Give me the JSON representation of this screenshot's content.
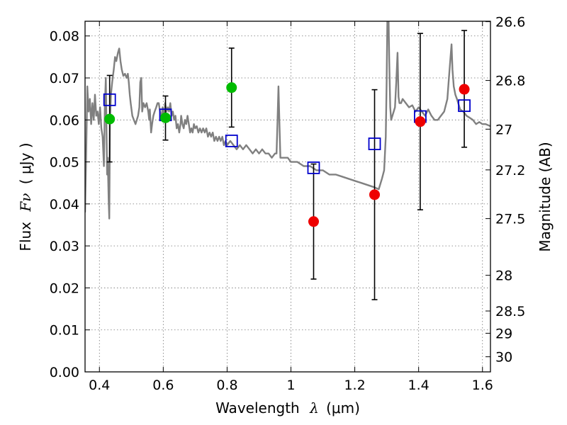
{
  "chart_data": {
    "type": "scatter",
    "xlabel": "Wavelength",
    "xlabel_symbol": "λ",
    "xlabel_unit": "(μm)",
    "ylabel": "Flux",
    "ylabel_symbol": "Fν",
    "ylabel_unit": "( μJy )",
    "right_ylabel": "Magnitude (AB)",
    "xlim": [
      0.355,
      1.625
    ],
    "ylim": [
      0.0,
      0.0835
    ],
    "grid": true,
    "x_ticks": [
      {
        "value": 0.4,
        "label": "0.4"
      },
      {
        "value": 0.6,
        "label": "0.6"
      },
      {
        "value": 0.8,
        "label": "0.8"
      },
      {
        "value": 1.0,
        "label": "1"
      },
      {
        "value": 1.2,
        "label": "1.2"
      },
      {
        "value": 1.4,
        "label": "1.4"
      },
      {
        "value": 1.6,
        "label": "1.6"
      }
    ],
    "y_ticks": [
      {
        "value": 0.0,
        "label": "0.00"
      },
      {
        "value": 0.01,
        "label": "0.01"
      },
      {
        "value": 0.02,
        "label": "0.02"
      },
      {
        "value": 0.03,
        "label": "0.03"
      },
      {
        "value": 0.04,
        "label": "0.04"
      },
      {
        "value": 0.05,
        "label": "0.05"
      },
      {
        "value": 0.06,
        "label": "0.06"
      },
      {
        "value": 0.07,
        "label": "0.07"
      },
      {
        "value": 0.08,
        "label": "0.08"
      }
    ],
    "right_ticks": [
      {
        "label": "26.6",
        "flux": 0.0834
      },
      {
        "label": "26.8",
        "flux": 0.0694
      },
      {
        "label": "27",
        "flux": 0.0578
      },
      {
        "label": "27.2",
        "flux": 0.0481
      },
      {
        "label": "27.5",
        "flux": 0.0365
      },
      {
        "label": "28",
        "flux": 0.023
      },
      {
        "label": "28.5",
        "flux": 0.0145
      },
      {
        "label": "29",
        "flux": 0.0092
      },
      {
        "label": "30",
        "flux": 0.0036
      }
    ],
    "model_spectrum": {
      "color": "#808080",
      "points": [
        [
          0.355,
          0.038
        ],
        [
          0.358,
          0.05
        ],
        [
          0.362,
          0.068
        ],
        [
          0.366,
          0.062
        ],
        [
          0.37,
          0.065
        ],
        [
          0.374,
          0.059
        ],
        [
          0.378,
          0.064
        ],
        [
          0.382,
          0.06
        ],
        [
          0.386,
          0.066
        ],
        [
          0.39,
          0.061
        ],
        [
          0.394,
          0.062
        ],
        [
          0.398,
          0.059
        ],
        [
          0.402,
          0.063
        ],
        [
          0.406,
          0.058
        ],
        [
          0.41,
          0.056
        ],
        [
          0.414,
          0.049
        ],
        [
          0.417,
          0.063
        ],
        [
          0.42,
          0.07
        ],
        [
          0.424,
          0.047
        ],
        [
          0.426,
          0.051
        ],
        [
          0.429,
          0.041
        ],
        [
          0.431,
          0.0365
        ],
        [
          0.433,
          0.059
        ],
        [
          0.436,
          0.066
        ],
        [
          0.44,
          0.069
        ],
        [
          0.445,
          0.072
        ],
        [
          0.449,
          0.075
        ],
        [
          0.453,
          0.074
        ],
        [
          0.458,
          0.076
        ],
        [
          0.462,
          0.077
        ],
        [
          0.466,
          0.074
        ],
        [
          0.47,
          0.072
        ],
        [
          0.475,
          0.0705
        ],
        [
          0.48,
          0.071
        ],
        [
          0.485,
          0.07
        ],
        [
          0.489,
          0.071
        ],
        [
          0.492,
          0.069
        ],
        [
          0.495,
          0.066
        ],
        [
          0.498,
          0.064
        ],
        [
          0.503,
          0.061
        ],
        [
          0.508,
          0.06
        ],
        [
          0.513,
          0.059
        ],
        [
          0.517,
          0.06
        ],
        [
          0.521,
          0.061
        ],
        [
          0.525,
          0.063
        ],
        [
          0.528,
          0.069
        ],
        [
          0.531,
          0.07
        ],
        [
          0.534,
          0.062
        ],
        [
          0.538,
          0.064
        ],
        [
          0.543,
          0.063
        ],
        [
          0.548,
          0.064
        ],
        [
          0.553,
          0.062
        ],
        [
          0.556,
          0.06
        ],
        [
          0.558,
          0.0625
        ],
        [
          0.562,
          0.057
        ],
        [
          0.565,
          0.059
        ],
        [
          0.569,
          0.061
        ],
        [
          0.573,
          0.062
        ],
        [
          0.578,
          0.063
        ],
        [
          0.582,
          0.064
        ],
        [
          0.586,
          0.064
        ],
        [
          0.59,
          0.062
        ],
        [
          0.594,
          0.06
        ],
        [
          0.598,
          0.063
        ],
        [
          0.603,
          0.061
        ],
        [
          0.606,
          0.064
        ],
        [
          0.61,
          0.062
        ],
        [
          0.614,
          0.063
        ],
        [
          0.618,
          0.062
        ],
        [
          0.622,
          0.064
        ],
        [
          0.626,
          0.061
        ],
        [
          0.63,
          0.062
        ],
        [
          0.634,
          0.06
        ],
        [
          0.638,
          0.061
        ],
        [
          0.642,
          0.058
        ],
        [
          0.646,
          0.059
        ],
        [
          0.65,
          0.057
        ],
        [
          0.654,
          0.059
        ],
        [
          0.656,
          0.061
        ],
        [
          0.66,
          0.059
        ],
        [
          0.664,
          0.058
        ],
        [
          0.668,
          0.06
        ],
        [
          0.672,
          0.059
        ],
        [
          0.676,
          0.061
        ],
        [
          0.68,
          0.059
        ],
        [
          0.684,
          0.057
        ],
        [
          0.688,
          0.058
        ],
        [
          0.692,
          0.057
        ],
        [
          0.696,
          0.059
        ],
        [
          0.7,
          0.058
        ],
        [
          0.705,
          0.0585
        ],
        [
          0.71,
          0.057
        ],
        [
          0.715,
          0.058
        ],
        [
          0.72,
          0.057
        ],
        [
          0.725,
          0.058
        ],
        [
          0.73,
          0.057
        ],
        [
          0.735,
          0.058
        ],
        [
          0.74,
          0.056
        ],
        [
          0.745,
          0.057
        ],
        [
          0.75,
          0.056
        ],
        [
          0.755,
          0.057
        ],
        [
          0.76,
          0.055
        ],
        [
          0.765,
          0.056
        ],
        [
          0.77,
          0.055
        ],
        [
          0.775,
          0.056
        ],
        [
          0.78,
          0.055
        ],
        [
          0.785,
          0.056
        ],
        [
          0.79,
          0.054
        ],
        [
          0.795,
          0.055
        ],
        [
          0.8,
          0.054
        ],
        [
          0.81,
          0.055
        ],
        [
          0.82,
          0.054
        ],
        [
          0.83,
          0.053
        ],
        [
          0.84,
          0.054
        ],
        [
          0.85,
          0.053
        ],
        [
          0.86,
          0.054
        ],
        [
          0.87,
          0.053
        ],
        [
          0.88,
          0.052
        ],
        [
          0.89,
          0.053
        ],
        [
          0.9,
          0.052
        ],
        [
          0.91,
          0.053
        ],
        [
          0.92,
          0.052
        ],
        [
          0.93,
          0.052
        ],
        [
          0.94,
          0.051
        ],
        [
          0.95,
          0.052
        ],
        [
          0.955,
          0.052
        ],
        [
          0.958,
          0.06
        ],
        [
          0.961,
          0.068
        ],
        [
          0.964,
          0.059
        ],
        [
          0.967,
          0.051
        ],
        [
          0.975,
          0.051
        ],
        [
          0.99,
          0.051
        ],
        [
          1.0,
          0.05
        ],
        [
          1.02,
          0.05
        ],
        [
          1.04,
          0.049
        ],
        [
          1.06,
          0.049
        ],
        [
          1.08,
          0.048
        ],
        [
          1.1,
          0.048
        ],
        [
          1.12,
          0.047
        ],
        [
          1.14,
          0.047
        ],
        [
          1.16,
          0.0465
        ],
        [
          1.18,
          0.046
        ],
        [
          1.2,
          0.0455
        ],
        [
          1.22,
          0.045
        ],
        [
          1.24,
          0.0445
        ],
        [
          1.26,
          0.044
        ],
        [
          1.275,
          0.0435
        ],
        [
          1.285,
          0.046
        ],
        [
          1.292,
          0.048
        ],
        [
          1.297,
          0.056
        ],
        [
          1.3,
          0.07
        ],
        [
          1.302,
          0.0835
        ],
        [
          1.306,
          0.0835
        ],
        [
          1.308,
          0.074
        ],
        [
          1.311,
          0.063
        ],
        [
          1.314,
          0.06
        ],
        [
          1.318,
          0.061
        ],
        [
          1.322,
          0.062
        ],
        [
          1.326,
          0.063
        ],
        [
          1.33,
          0.069
        ],
        [
          1.334,
          0.076
        ],
        [
          1.337,
          0.0655
        ],
        [
          1.34,
          0.064
        ],
        [
          1.345,
          0.064
        ],
        [
          1.35,
          0.065
        ],
        [
          1.36,
          0.064
        ],
        [
          1.37,
          0.063
        ],
        [
          1.38,
          0.0635
        ],
        [
          1.39,
          0.062
        ],
        [
          1.4,
          0.063
        ],
        [
          1.41,
          0.062
        ],
        [
          1.42,
          0.061
        ],
        [
          1.43,
          0.0625
        ],
        [
          1.44,
          0.061
        ],
        [
          1.45,
          0.06
        ],
        [
          1.46,
          0.06
        ],
        [
          1.47,
          0.061
        ],
        [
          1.48,
          0.062
        ],
        [
          1.49,
          0.065
        ],
        [
          1.495,
          0.07
        ],
        [
          1.5,
          0.075
        ],
        [
          1.503,
          0.078
        ],
        [
          1.506,
          0.072
        ],
        [
          1.51,
          0.068
        ],
        [
          1.515,
          0.066
        ],
        [
          1.52,
          0.065
        ],
        [
          1.53,
          0.0625
        ],
        [
          1.54,
          0.062
        ],
        [
          1.55,
          0.061
        ],
        [
          1.56,
          0.0605
        ],
        [
          1.57,
          0.06
        ],
        [
          1.58,
          0.059
        ],
        [
          1.59,
          0.0595
        ],
        [
          1.6,
          0.059
        ],
        [
          1.61,
          0.059
        ],
        [
          1.625,
          0.0585
        ]
      ]
    },
    "model_photometry": {
      "marker": "open-square",
      "color": "#0000cc",
      "points": [
        {
          "x": 0.432,
          "y": 0.0648
        },
        {
          "x": 0.607,
          "y": 0.0612
        },
        {
          "x": 0.814,
          "y": 0.055
        },
        {
          "x": 1.071,
          "y": 0.0486
        },
        {
          "x": 1.262,
          "y": 0.0543
        },
        {
          "x": 1.405,
          "y": 0.0608
        },
        {
          "x": 1.543,
          "y": 0.0634
        }
      ]
    },
    "observed_detections": {
      "marker": "filled-circle",
      "color": "#00bb00",
      "points": [
        {
          "x": 0.432,
          "y": 0.0602,
          "yerr_low": 0.05,
          "yerr_high": 0.0706
        },
        {
          "x": 0.607,
          "y": 0.0605,
          "yerr_low": 0.0552,
          "yerr_high": 0.0657
        },
        {
          "x": 0.814,
          "y": 0.0677,
          "yerr_low": 0.0583,
          "yerr_high": 0.0771
        }
      ]
    },
    "observed_low_significance": {
      "marker": "filled-circle",
      "color": "#ee0000",
      "points": [
        {
          "x": 1.071,
          "y": 0.0358,
          "yerr_low": 0.0221,
          "yerr_high": 0.0495
        },
        {
          "x": 1.262,
          "y": 0.0422,
          "yerr_low": 0.0172,
          "yerr_high": 0.0672
        },
        {
          "x": 1.405,
          "y": 0.0596,
          "yerr_low": 0.0386,
          "yerr_high": 0.0806
        },
        {
          "x": 1.543,
          "y": 0.0673,
          "yerr_low": 0.0535,
          "yerr_high": 0.0813
        }
      ]
    }
  }
}
